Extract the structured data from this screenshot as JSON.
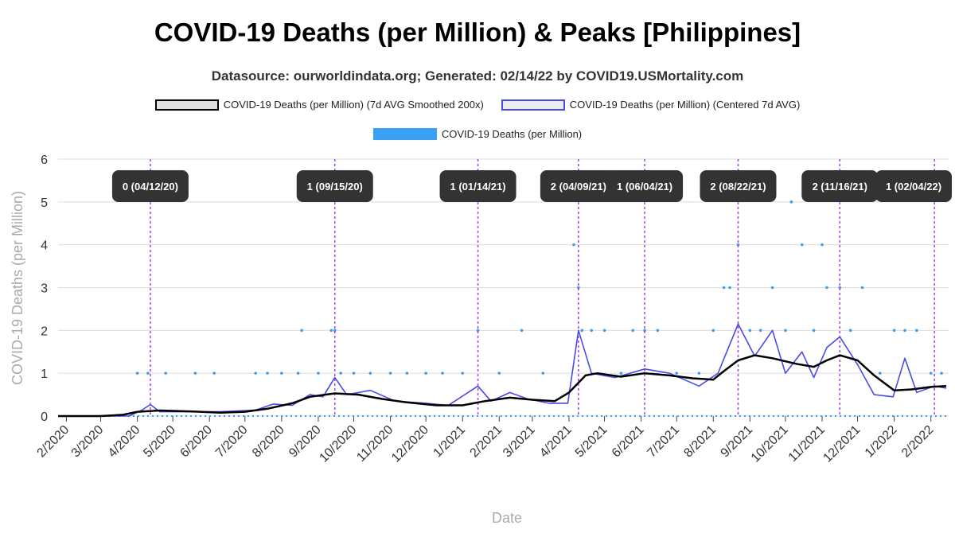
{
  "chart_data": {
    "type": "line",
    "title": "COVID-19 Deaths (per Million) & Peaks [Philippines]",
    "subtitle": "Datasource: ourworldindata.org; Generated: 02/14/22 by COVID19.USMortality.com",
    "xlabel": "Date",
    "ylabel": "COVID-19 Deaths (per Million)",
    "ylim": [
      0,
      6
    ],
    "yticks": [
      "0",
      "1",
      "2",
      "3",
      "4",
      "5",
      "6"
    ],
    "xlim": [
      "2020-01-25",
      "2022-02-16"
    ],
    "xticks": [
      "2/2020",
      "3/2020",
      "4/2020",
      "5/2020",
      "6/2020",
      "7/2020",
      "8/2020",
      "9/2020",
      "10/2020",
      "11/2020",
      "12/2020",
      "1/2021",
      "2/2021",
      "3/2021",
      "4/2021",
      "5/2021",
      "6/2021",
      "7/2021",
      "8/2021",
      "9/2021",
      "10/2021",
      "11/2021",
      "12/2021",
      "1/2022",
      "2/2022"
    ],
    "xtick_dates": [
      "2020-02-01",
      "2020-03-01",
      "2020-04-01",
      "2020-05-01",
      "2020-06-01",
      "2020-07-01",
      "2020-08-01",
      "2020-09-01",
      "2020-10-01",
      "2020-11-01",
      "2020-12-01",
      "2021-01-01",
      "2021-02-01",
      "2021-03-01",
      "2021-04-01",
      "2021-05-01",
      "2021-06-01",
      "2021-07-01",
      "2021-08-01",
      "2021-09-01",
      "2021-10-01",
      "2021-11-01",
      "2021-12-01",
      "2022-01-01",
      "2022-02-01"
    ],
    "grid": "horizontal",
    "legend": [
      {
        "label": "COVID-19 Deaths (per Million) (7d AVG Smoothed 200x)",
        "style": "smooth"
      },
      {
        "label": "COVID-19 Deaths (per Million) (Centered 7d AVG)",
        "style": "avg"
      },
      {
        "label": "COVID-19 Deaths (per Million)",
        "style": "daily"
      }
    ],
    "colors": {
      "smooth": "#000000",
      "avg": "#4a4ae8",
      "daily": "#3aa0f3",
      "peak_line": "#a040f0",
      "peak_label": "#333333"
    },
    "series": [
      {
        "name": "COVID-19 Deaths (per Million) (7d AVG Smoothed 200x)",
        "points": [
          [
            "2020-01-25",
            0
          ],
          [
            "2020-03-01",
            0
          ],
          [
            "2020-03-20",
            0.03
          ],
          [
            "2020-04-01",
            0.1
          ],
          [
            "2020-04-20",
            0.13
          ],
          [
            "2020-05-15",
            0.11
          ],
          [
            "2020-06-10",
            0.08
          ],
          [
            "2020-07-01",
            0.1
          ],
          [
            "2020-07-20",
            0.17
          ],
          [
            "2020-08-10",
            0.3
          ],
          [
            "2020-08-25",
            0.45
          ],
          [
            "2020-09-15",
            0.53
          ],
          [
            "2020-10-05",
            0.5
          ],
          [
            "2020-10-25",
            0.4
          ],
          [
            "2020-11-15",
            0.32
          ],
          [
            "2020-12-10",
            0.25
          ],
          [
            "2021-01-01",
            0.25
          ],
          [
            "2021-01-20",
            0.35
          ],
          [
            "2021-02-10",
            0.43
          ],
          [
            "2021-03-01",
            0.38
          ],
          [
            "2021-03-20",
            0.35
          ],
          [
            "2021-04-01",
            0.55
          ],
          [
            "2021-04-15",
            0.95
          ],
          [
            "2021-04-25",
            1.0
          ],
          [
            "2021-05-15",
            0.92
          ],
          [
            "2021-06-04",
            1.0
          ],
          [
            "2021-06-25",
            0.95
          ],
          [
            "2021-07-15",
            0.88
          ],
          [
            "2021-08-01",
            0.85
          ],
          [
            "2021-08-10",
            1.05
          ],
          [
            "2021-08-22",
            1.3
          ],
          [
            "2021-09-05",
            1.42
          ],
          [
            "2021-09-20",
            1.35
          ],
          [
            "2021-10-10",
            1.22
          ],
          [
            "2021-10-25",
            1.15
          ],
          [
            "2021-11-05",
            1.3
          ],
          [
            "2021-11-16",
            1.42
          ],
          [
            "2021-12-01",
            1.3
          ],
          [
            "2021-12-15",
            0.95
          ],
          [
            "2022-01-01",
            0.6
          ],
          [
            "2022-01-15",
            0.62
          ],
          [
            "2022-02-01",
            0.68
          ],
          [
            "2022-02-14",
            0.7
          ]
        ]
      },
      {
        "name": "COVID-19 Deaths (per Million) (Centered 7d AVG)",
        "points": [
          [
            "2020-01-25",
            0
          ],
          [
            "2020-03-25",
            0
          ],
          [
            "2020-04-05",
            0.14
          ],
          [
            "2020-04-12",
            0.27
          ],
          [
            "2020-04-20",
            0.1
          ],
          [
            "2020-05-10",
            0.1
          ],
          [
            "2020-06-10",
            0.1
          ],
          [
            "2020-07-10",
            0.14
          ],
          [
            "2020-07-25",
            0.28
          ],
          [
            "2020-08-10",
            0.25
          ],
          [
            "2020-08-25",
            0.5
          ],
          [
            "2020-09-05",
            0.45
          ],
          [
            "2020-09-15",
            0.9
          ],
          [
            "2020-09-25",
            0.5
          ],
          [
            "2020-10-15",
            0.6
          ],
          [
            "2020-11-05",
            0.35
          ],
          [
            "2020-12-01",
            0.3
          ],
          [
            "2020-12-20",
            0.25
          ],
          [
            "2021-01-14",
            0.7
          ],
          [
            "2021-01-25",
            0.35
          ],
          [
            "2021-02-10",
            0.55
          ],
          [
            "2021-02-25",
            0.4
          ],
          [
            "2021-03-15",
            0.3
          ],
          [
            "2021-03-31",
            0.3
          ],
          [
            "2021-04-09",
            2.0
          ],
          [
            "2021-04-20",
            1.0
          ],
          [
            "2021-05-10",
            0.9
          ],
          [
            "2021-06-04",
            1.1
          ],
          [
            "2021-06-25",
            1.0
          ],
          [
            "2021-07-20",
            0.7
          ],
          [
            "2021-08-05",
            1.0
          ],
          [
            "2021-08-22",
            2.15
          ],
          [
            "2021-09-05",
            1.4
          ],
          [
            "2021-09-20",
            2.0
          ],
          [
            "2021-10-01",
            1.0
          ],
          [
            "2021-10-15",
            1.5
          ],
          [
            "2021-10-25",
            0.9
          ],
          [
            "2021-11-05",
            1.6
          ],
          [
            "2021-11-16",
            1.85
          ],
          [
            "2021-12-01",
            1.2
          ],
          [
            "2021-12-15",
            0.5
          ],
          [
            "2021-12-31",
            0.45
          ],
          [
            "2022-01-10",
            1.35
          ],
          [
            "2022-01-20",
            0.55
          ],
          [
            "2022-02-04",
            0.7
          ],
          [
            "2022-02-14",
            0.65
          ]
        ]
      },
      {
        "name": "COVID-19 Deaths (per Million)",
        "points": [
          [
            "2020-04-01",
            1
          ],
          [
            "2020-04-10",
            1
          ],
          [
            "2020-04-25",
            1
          ],
          [
            "2020-05-20",
            1
          ],
          [
            "2020-06-05",
            1
          ],
          [
            "2020-07-10",
            1
          ],
          [
            "2020-07-20",
            1
          ],
          [
            "2020-08-01",
            1
          ],
          [
            "2020-08-15",
            1
          ],
          [
            "2020-08-18",
            2
          ],
          [
            "2020-09-01",
            1
          ],
          [
            "2020-09-12",
            2
          ],
          [
            "2020-09-15",
            2
          ],
          [
            "2020-09-20",
            1
          ],
          [
            "2020-10-01",
            1
          ],
          [
            "2020-10-15",
            1
          ],
          [
            "2020-11-01",
            1
          ],
          [
            "2020-11-15",
            1
          ],
          [
            "2020-12-01",
            1
          ],
          [
            "2020-12-15",
            1
          ],
          [
            "2021-01-01",
            1
          ],
          [
            "2021-01-14",
            2
          ],
          [
            "2021-02-01",
            1
          ],
          [
            "2021-02-20",
            2
          ],
          [
            "2021-03-10",
            1
          ],
          [
            "2021-04-05",
            4
          ],
          [
            "2021-04-09",
            3
          ],
          [
            "2021-04-12",
            2
          ],
          [
            "2021-04-20",
            2
          ],
          [
            "2021-05-01",
            2
          ],
          [
            "2021-05-15",
            1
          ],
          [
            "2021-05-25",
            2
          ],
          [
            "2021-06-04",
            2
          ],
          [
            "2021-06-15",
            2
          ],
          [
            "2021-07-01",
            1
          ],
          [
            "2021-07-20",
            1
          ],
          [
            "2021-08-01",
            2
          ],
          [
            "2021-08-10",
            3
          ],
          [
            "2021-08-15",
            3
          ],
          [
            "2021-08-22",
            4
          ],
          [
            "2021-09-01",
            2
          ],
          [
            "2021-09-10",
            2
          ],
          [
            "2021-09-20",
            3
          ],
          [
            "2021-10-01",
            2
          ],
          [
            "2021-10-06",
            5
          ],
          [
            "2021-10-15",
            4
          ],
          [
            "2021-10-25",
            2
          ],
          [
            "2021-11-01",
            4
          ],
          [
            "2021-11-05",
            3
          ],
          [
            "2021-11-16",
            3
          ],
          [
            "2021-11-25",
            2
          ],
          [
            "2021-12-05",
            3
          ],
          [
            "2021-12-20",
            1
          ],
          [
            "2022-01-01",
            2
          ],
          [
            "2022-01-10",
            2
          ],
          [
            "2022-01-20",
            2
          ],
          [
            "2022-02-01",
            1
          ],
          [
            "2022-02-10",
            1
          ]
        ]
      }
    ],
    "peaks": [
      {
        "date": "2020-04-12",
        "label": "0 (04/12/20)"
      },
      {
        "date": "2020-09-15",
        "label": "1 (09/15/20)"
      },
      {
        "date": "2021-01-14",
        "label": "1 (01/14/21)"
      },
      {
        "date": "2021-04-09",
        "label": "2 (04/09/21)"
      },
      {
        "date": "2021-06-04",
        "label": "1 (06/04/21)"
      },
      {
        "date": "2021-08-22",
        "label": "2 (08/22/21)"
      },
      {
        "date": "2021-11-16",
        "label": "2 (11/16/21)"
      },
      {
        "date": "2022-02-04",
        "label": "1 (02/04/22)"
      }
    ]
  }
}
